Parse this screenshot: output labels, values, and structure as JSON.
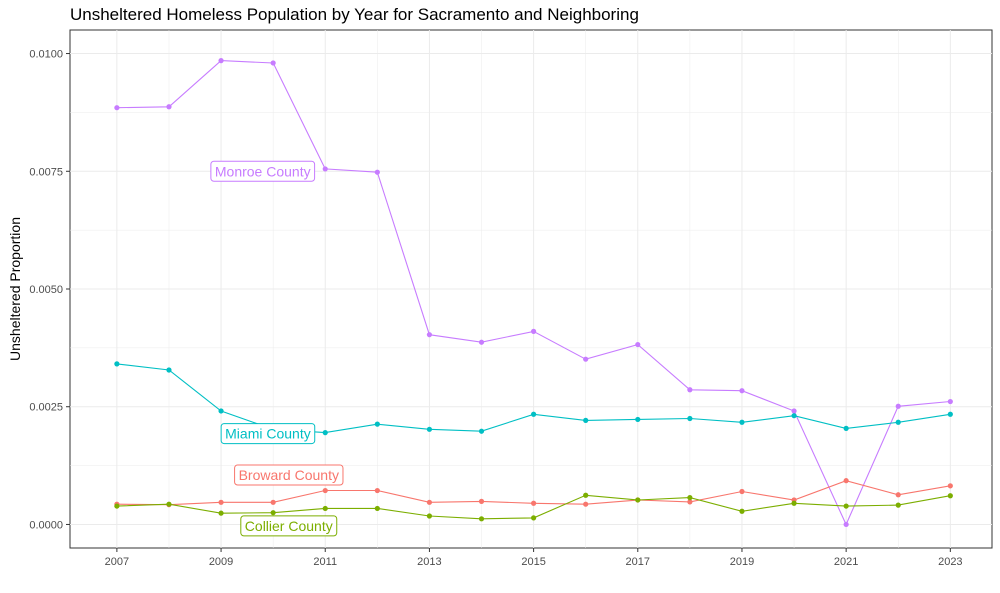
{
  "chart_data": {
    "type": "line",
    "title": "Unsheltered Homeless Population by Year for Sacramento and Neighboring",
    "xlabel": "",
    "ylabel": "Unsheltered Proportion",
    "x": [
      2007,
      2008,
      2009,
      2010,
      2011,
      2012,
      2013,
      2014,
      2015,
      2016,
      2017,
      2018,
      2019,
      2020,
      2021,
      2022,
      2023
    ],
    "xlim": [
      2006.1,
      2023.8
    ],
    "ylim": [
      -0.0005,
      0.0105
    ],
    "x_ticks": [
      "2007",
      "2009",
      "2011",
      "2013",
      "2015",
      "2017",
      "2019",
      "2021",
      "2023"
    ],
    "y_ticks": [
      "0.0000",
      "0.0025",
      "0.0050",
      "0.0075",
      "0.0100"
    ],
    "grid": true,
    "legend": "none (direct labels)",
    "series": [
      {
        "name": "Monroe County",
        "color": "#C77CFF",
        "values": [
          0.00885,
          0.00887,
          0.00985,
          0.0098,
          0.00755,
          0.00748,
          0.00403,
          0.00387,
          0.0041,
          0.00351,
          0.00382,
          0.00286,
          0.00284,
          0.00241,
          0.0,
          0.00251,
          0.00261
        ],
        "label_year": 2009.8,
        "label_value": 0.0075
      },
      {
        "name": "Miami County",
        "color": "#00BFC4",
        "values": [
          0.00341,
          0.00328,
          0.00241,
          0.00202,
          0.00195,
          0.00213,
          0.00202,
          0.00198,
          0.00234,
          0.00221,
          0.00223,
          0.00225,
          0.00217,
          0.00231,
          0.00204,
          0.00217,
          0.00234
        ],
        "label_year": 2009.9,
        "label_value": 0.00193
      },
      {
        "name": "Broward County",
        "color": "#F8766D",
        "values": [
          0.00043,
          0.00042,
          0.00047,
          0.00047,
          0.00072,
          0.00072,
          0.00047,
          0.00049,
          0.00045,
          0.00043,
          0.00052,
          0.00048,
          0.0007,
          0.00052,
          0.00093,
          0.00063,
          0.00082
        ],
        "label_year": 2010.3,
        "label_value": 0.00105
      },
      {
        "name": "Collier County",
        "color": "#7CAE00",
        "values": [
          0.00039,
          0.00043,
          0.00024,
          0.00025,
          0.00034,
          0.00034,
          0.00018,
          0.00012,
          0.00014,
          0.00062,
          0.00052,
          0.00057,
          0.00028,
          0.00045,
          0.00039,
          0.00041,
          0.00061
        ],
        "label_year": 2010.3,
        "label_value": -3e-05
      }
    ]
  }
}
